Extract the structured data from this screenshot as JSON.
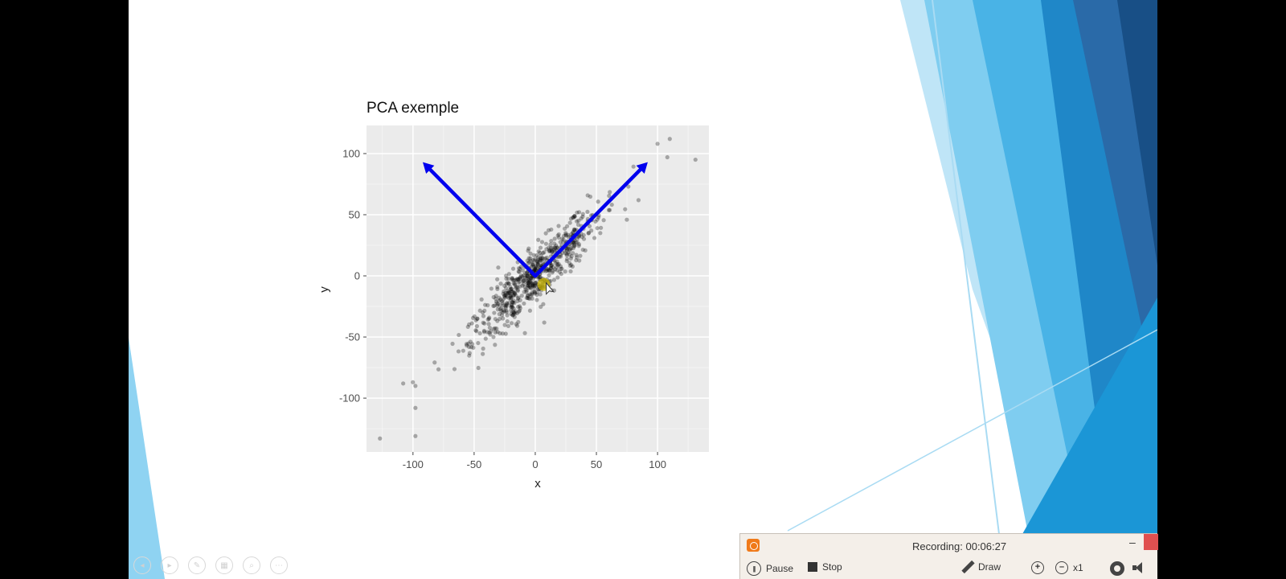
{
  "chart_data": {
    "type": "scatter",
    "title": "PCA exemple",
    "xlabel": "x",
    "ylabel": "y",
    "xlim": [
      -138,
      142
    ],
    "ylim": [
      -144,
      123
    ],
    "xticks": [
      -100,
      -50,
      0,
      50,
      100
    ],
    "yticks": [
      -100,
      -50,
      0,
      50,
      100
    ],
    "grid": true,
    "background_color": "#ebebeb",
    "point_color": "rgba(0,0,0,0.3)",
    "arrow_color": "#0000ee",
    "n_points": 650,
    "distribution": {
      "mean": [
        0,
        0
      ],
      "principal_axis_slope": 1,
      "major_sd": 38,
      "minor_sd": 8
    },
    "highlight_points": [
      {
        "x": -127,
        "y": -133
      },
      {
        "x": -98,
        "y": -131
      },
      {
        "x": -98,
        "y": -108
      },
      {
        "x": -108,
        "y": -88
      },
      {
        "x": -98,
        "y": -90
      },
      {
        "x": 100,
        "y": 108
      },
      {
        "x": 110,
        "y": 112
      },
      {
        "x": 108,
        "y": 97
      },
      {
        "x": 131,
        "y": 95
      }
    ],
    "arrows": [
      {
        "x0": 0,
        "y0": 0,
        "x1": 92,
        "y1": 93
      },
      {
        "x0": 0,
        "y0": 0,
        "x1": -92,
        "y1": 93
      }
    ],
    "cursor_highlight": {
      "x": 7,
      "y": -7,
      "color": "#c8b400"
    }
  },
  "recorder": {
    "status": "Recording:  00:06:27",
    "minimize": "–",
    "pause_label": "Pause",
    "stop_label": "Stop",
    "draw_label": "Draw",
    "zoom_in": "+",
    "zoom_out": "–",
    "zoom_level": "x1"
  },
  "slide_controls": [
    {
      "name": "previous-slide-button",
      "glyph": "◂"
    },
    {
      "name": "next-slide-button",
      "glyph": "▸"
    },
    {
      "name": "pen-tool-button",
      "glyph": "✎"
    },
    {
      "name": "slides-overview-button",
      "glyph": "▦"
    },
    {
      "name": "zoom-button",
      "glyph": "⌕"
    },
    {
      "name": "more-options-button",
      "glyph": "⋯"
    }
  ]
}
